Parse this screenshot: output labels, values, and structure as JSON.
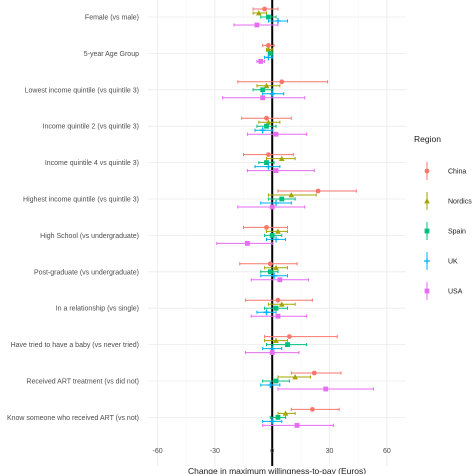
{
  "chart_data": {
    "type": "forest",
    "xlabel": "Change in maximum willingness-to-pay (Euros)",
    "ylabel": "",
    "xlim": [
      -65,
      70
    ],
    "xticks": [
      -60,
      -30,
      0,
      30,
      60
    ],
    "xtick_labels": [
      "-60",
      "-30",
      "0",
      "30",
      "60"
    ],
    "grid": true,
    "legend": {
      "title": "Region",
      "position": "right"
    },
    "categories": [
      "Female (vs male)",
      "5-year Age Group",
      "Lowest income quintile (vs quintile 3)",
      "Income quintile 2 (vs quintile 3)",
      "Income quintile 4 vs quintile 3)",
      "Highest income quintile (vs quintile 3)",
      "High School (vs undergraduate)",
      "Post-graduate (vs undergraduate)",
      "In a relationship (vs single)",
      "Have tried to have a baby (vs never tried)",
      "Received ART treatment (vs did not)",
      "Know someone who received ART (vs not)"
    ],
    "series": [
      {
        "name": "China",
        "color": "#F8766D",
        "shape": "circle",
        "est": [
          -4,
          -2,
          5,
          -3,
          -2,
          24,
          -3,
          -1,
          3,
          9,
          22,
          21
        ],
        "lo": [
          -10,
          -5,
          -18,
          -16,
          -15,
          3,
          -15,
          -17,
          -14,
          -4,
          10,
          10
        ],
        "hi": [
          3,
          1,
          29,
          10,
          11,
          44,
          8,
          13,
          21,
          34,
          36,
          35
        ]
      },
      {
        "name": "Nordics",
        "color": "#A3A500",
        "shape": "triangle",
        "est": [
          -7,
          -2,
          -3,
          -2,
          5,
          10,
          3,
          2,
          5,
          2,
          12,
          7
        ],
        "lo": [
          -10,
          -3,
          -8,
          -7,
          -3,
          -2,
          -3,
          -4,
          -2,
          -4,
          3,
          3
        ],
        "hi": [
          -3,
          0,
          4,
          4,
          12,
          23,
          8,
          8,
          12,
          8,
          20,
          12
        ]
      },
      {
        "name": "Spain",
        "color": "#00BF7D",
        "shape": "square",
        "est": [
          -2,
          -1,
          -5,
          -3,
          -3,
          5,
          0,
          -1,
          2,
          8,
          2,
          3
        ],
        "lo": [
          -6,
          -2,
          -10,
          -8,
          -7,
          -2,
          -4,
          -6,
          -4,
          -3,
          -5,
          -1
        ],
        "hi": [
          2,
          0,
          0,
          2,
          1,
          12,
          5,
          3,
          8,
          18,
          9,
          7
        ]
      },
      {
        "name": "UK",
        "color": "#00B0F6",
        "shape": "cross",
        "est": [
          3,
          -2,
          0,
          -5,
          -2,
          2,
          2,
          1,
          -3,
          0,
          -1,
          0
        ],
        "lo": [
          -2,
          -4,
          -5,
          -9,
          -9,
          -6,
          -3,
          -6,
          -8,
          -5,
          -6,
          -5
        ],
        "hi": [
          8,
          0,
          6,
          0,
          4,
          10,
          7,
          8,
          2,
          5,
          4,
          5
        ]
      },
      {
        "name": "USA",
        "color": "#E76BF3",
        "shape": "square",
        "est": [
          -8,
          -6,
          -5,
          2,
          2,
          0,
          -13,
          4,
          3,
          0,
          28,
          13
        ],
        "lo": [
          -20,
          -8,
          -26,
          -13,
          -13,
          -18,
          -29,
          -11,
          -11,
          -14,
          3,
          -5
        ],
        "hi": [
          3,
          -4,
          17,
          18,
          22,
          17,
          0,
          19,
          18,
          14,
          53,
          32
        ]
      }
    ]
  }
}
